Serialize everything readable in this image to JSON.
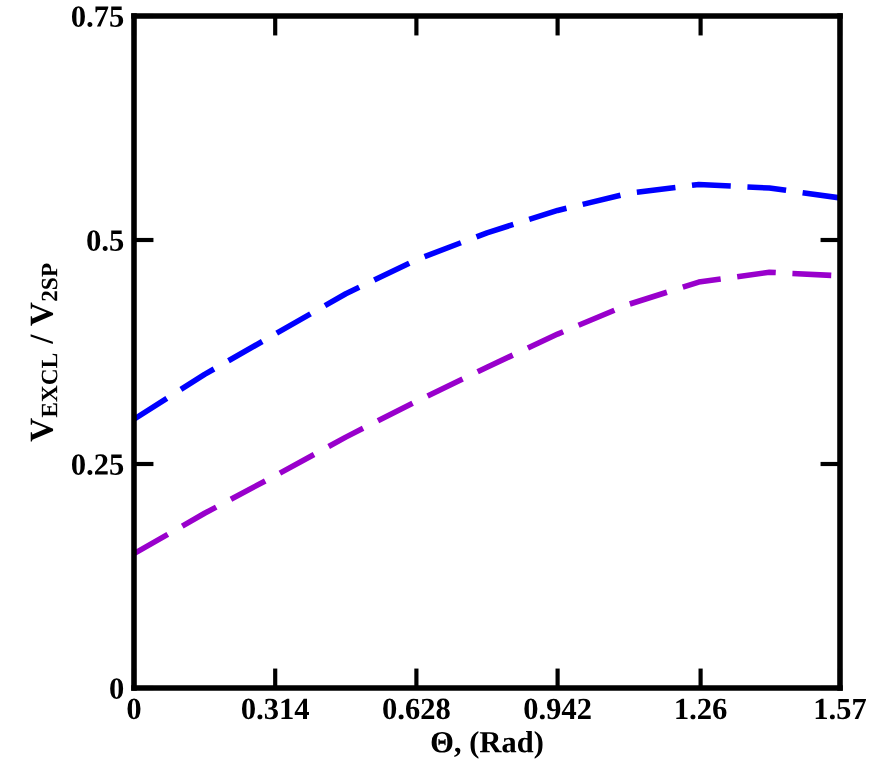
{
  "chart_data": {
    "type": "line",
    "xlabel": "Θ, (Rad)",
    "ylabel": "V$_{EXCL}$ / V$_{2SP}$",
    "x": [
      0,
      0.157,
      0.314,
      0.471,
      0.628,
      0.785,
      0.942,
      1.099,
      1.256,
      1.413,
      1.57
    ],
    "series": [
      {
        "color": "#0000ff",
        "line_style": "dashed",
        "values": [
          0.3,
          0.35,
          0.395,
          0.44,
          0.478,
          0.508,
          0.533,
          0.552,
          0.562,
          0.558,
          0.547
        ]
      },
      {
        "color": "#9900cc",
        "line_style": "dashed",
        "values": [
          0.15,
          0.195,
          0.237,
          0.28,
          0.32,
          0.358,
          0.395,
          0.428,
          0.453,
          0.464,
          0.46
        ]
      }
    ],
    "xlim": [
      0,
      1.57
    ],
    "ylim": [
      0,
      0.75
    ],
    "xticks": [
      0,
      0.314,
      0.628,
      0.942,
      1.26,
      1.57
    ],
    "yticks": [
      0,
      0.25,
      0.5,
      0.75
    ],
    "grid": false,
    "legend": false,
    "marker": "none"
  }
}
